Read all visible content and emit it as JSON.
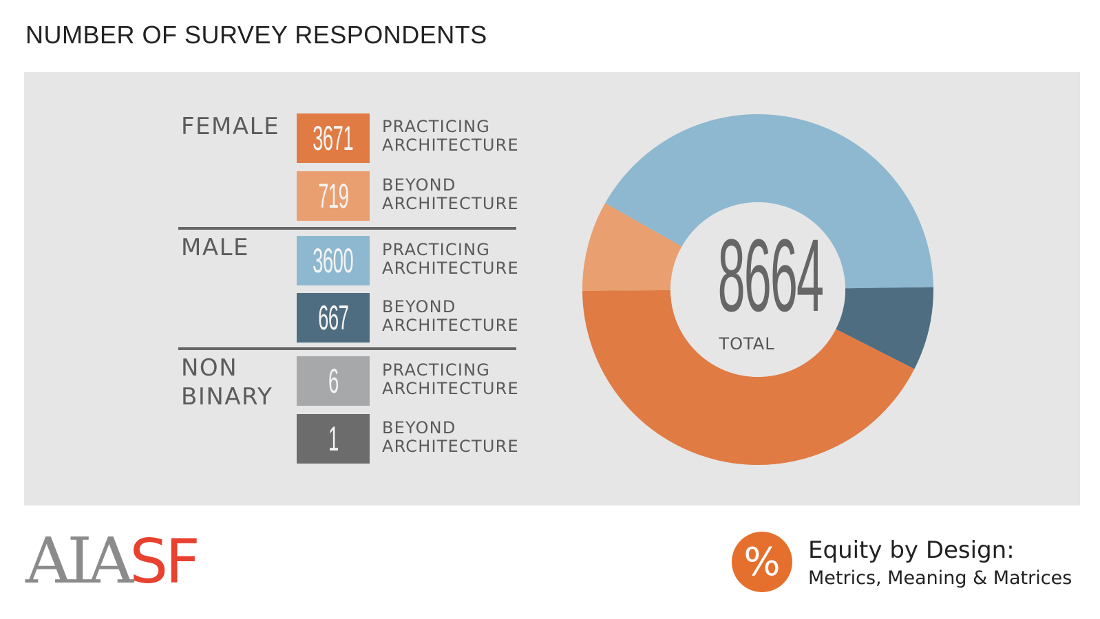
{
  "title": "NUMBER OF SURVEY RESPONDENTS",
  "groups": [
    {
      "name": "FEMALE"
    },
    {
      "name": "MALE"
    },
    {
      "name_line1": "NON",
      "name_line2": "BINARY"
    }
  ],
  "rows": [
    {
      "value": "3671",
      "label1": "PRACTICING",
      "label2": "ARCHITECTURE",
      "color": "#e07b43"
    },
    {
      "value": "719",
      "label1": "BEYOND",
      "label2": "ARCHITECTURE",
      "color": "#e99f6f"
    },
    {
      "value": "3600",
      "label1": "PRACTICING",
      "label2": "ARCHITECTURE",
      "color": "#8db8cf"
    },
    {
      "value": "667",
      "label1": "BEYOND",
      "label2": "ARCHITECTURE",
      "color": "#4f6d80"
    },
    {
      "value": "6",
      "label1": "PRACTICING",
      "label2": "ARCHITECTURE",
      "color": "#a7a8aa"
    },
    {
      "value": "1",
      "label1": "BEYOND",
      "label2": "ARCHITECTURE",
      "color": "#6c6c6c"
    }
  ],
  "chart_data": {
    "type": "pie",
    "title": "NUMBER OF SURVEY RESPONDENTS",
    "center_value": "8664",
    "center_label": "TOTAL",
    "slices": [
      {
        "name": "Male - Practicing Architecture",
        "value": 3600,
        "color": "#8db8cf"
      },
      {
        "name": "Male - Beyond Architecture",
        "value": 667,
        "color": "#4f6d80"
      },
      {
        "name": "Female - Practicing Architecture",
        "value": 3671,
        "color": "#e07b43"
      },
      {
        "name": "Female - Beyond Architecture",
        "value": 719,
        "color": "#e99f6f"
      }
    ]
  },
  "footer": {
    "logo_part1": "AIA",
    "logo_part2": "SF",
    "badge_symbol": "%",
    "edd_title": "Equity by Design:",
    "edd_subtitle": "Metrics, Meaning & Matrices"
  }
}
